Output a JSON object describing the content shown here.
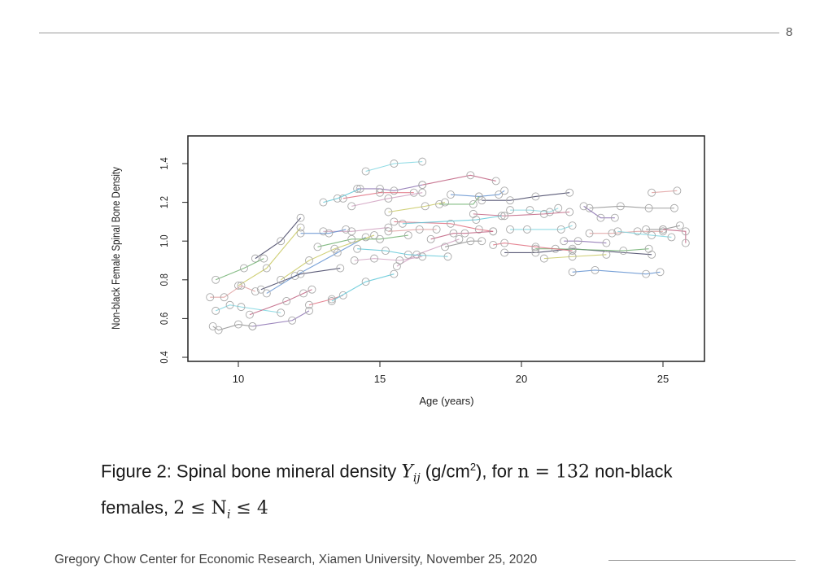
{
  "slide": {
    "page_number": "8",
    "footer": "Gregory Chow Center for Economic Research, Xiamen University, November 25, 2020"
  },
  "caption": {
    "prefix": "Figure 2: Spinal bone mineral density ",
    "Y": "Y",
    "sub": "ij",
    "unit_open": " (g/cm",
    "unit_sup": "2",
    "unit_close": "), for ",
    "n_expr": "n = 132",
    "rest": " non-black",
    "line2_prefix": "females, ",
    "range_expr": "2 ≤ N",
    "range_sub": "i",
    "range_end": " ≤ 4"
  },
  "chart_data": {
    "type": "line",
    "title": "",
    "xlabel": "Age (years)",
    "ylabel": "Non-black Female Spinal Bone Density",
    "xlim": [
      8.2,
      26.4
    ],
    "ylim": [
      0.4,
      1.56
    ],
    "xticks": [
      10,
      15,
      20,
      25
    ],
    "yticks": [
      0.4,
      0.6,
      0.8,
      1.0,
      1.2,
      1.4
    ],
    "xtick_labels": [
      "10",
      "15",
      "20",
      "25"
    ],
    "ytick_labels": [
      "0.4",
      "0.6",
      "0.8",
      "1.0",
      "1.2",
      "1.4"
    ],
    "grid": false,
    "colors": [
      "#7fd6e0",
      "#c06080",
      "#8a70b0",
      "#e07080",
      "#60c8d8",
      "#d0a0c0",
      "#6090d0",
      "#404060",
      "#c8c860",
      "#70b070",
      "#e0a0a0",
      "#909090"
    ],
    "series": [
      {
        "x": [
          14.5,
          15.5,
          16.5
        ],
        "y": [
          1.36,
          1.4,
          1.41
        ]
      },
      {
        "x": [
          16.5,
          18.2,
          19.1
        ],
        "y": [
          1.29,
          1.34,
          1.31
        ]
      },
      {
        "x": [
          14.2,
          15.0,
          15.5,
          16.5
        ],
        "y": [
          1.27,
          1.27,
          1.26,
          1.29
        ]
      },
      {
        "x": [
          13.7,
          15.0,
          16.2
        ],
        "y": [
          1.22,
          1.25,
          1.25
        ]
      },
      {
        "x": [
          13.0,
          13.5,
          14.3
        ],
        "y": [
          1.2,
          1.22,
          1.27
        ]
      },
      {
        "x": [
          14.0,
          15.3,
          16.5
        ],
        "y": [
          1.18,
          1.22,
          1.25
        ]
      },
      {
        "x": [
          17.5,
          18.5,
          19.2,
          19.4
        ],
        "y": [
          1.24,
          1.23,
          1.24,
          1.26
        ]
      },
      {
        "x": [
          18.6,
          19.6,
          20.5,
          21.7
        ],
        "y": [
          1.21,
          1.21,
          1.23,
          1.25
        ]
      },
      {
        "x": [
          15.3,
          16.6,
          17.3
        ],
        "y": [
          1.15,
          1.18,
          1.2
        ]
      },
      {
        "x": [
          17.1,
          18.3,
          18.5
        ],
        "y": [
          1.19,
          1.19,
          1.23
        ]
      },
      {
        "x": [
          24.6,
          25.5
        ],
        "y": [
          1.25,
          1.26
        ]
      },
      {
        "x": [
          22.4,
          23.5,
          24.5,
          25.4
        ],
        "y": [
          1.17,
          1.18,
          1.17,
          1.17
        ]
      },
      {
        "x": [
          19.6,
          20.3,
          21.0,
          21.3
        ],
        "y": [
          1.16,
          1.16,
          1.15,
          1.17
        ]
      },
      {
        "x": [
          18.3,
          19.4,
          20.8,
          21.7
        ],
        "y": [
          1.14,
          1.13,
          1.14,
          1.15
        ]
      },
      {
        "x": [
          22.2,
          22.8,
          23.3
        ],
        "y": [
          1.18,
          1.12,
          1.12
        ]
      },
      {
        "x": [
          15.5,
          17.5,
          18.5,
          19.0
        ],
        "y": [
          1.1,
          1.09,
          1.06,
          1.05
        ]
      },
      {
        "x": [
          15.8,
          18.4,
          19.3
        ],
        "y": [
          1.09,
          1.11,
          1.13
        ]
      },
      {
        "x": [
          13.0,
          14.0,
          15.3
        ],
        "y": [
          1.05,
          1.05,
          1.07
        ]
      },
      {
        "x": [
          12.2,
          13.2,
          13.8
        ],
        "y": [
          1.04,
          1.04,
          1.06
        ]
      },
      {
        "x": [
          10.6,
          11.5,
          12.2
        ],
        "y": [
          0.91,
          1.0,
          1.12
        ]
      },
      {
        "x": [
          10.0,
          11.0,
          12.2
        ],
        "y": [
          0.77,
          0.86,
          1.07
        ]
      },
      {
        "x": [
          9.2,
          10.2,
          10.9
        ],
        "y": [
          0.8,
          0.86,
          0.91
        ]
      },
      {
        "x": [
          9.0,
          9.5,
          10.1,
          10.6
        ],
        "y": [
          0.71,
          0.71,
          0.77,
          0.74
        ]
      },
      {
        "x": [
          9.1,
          9.3,
          10.0,
          10.5
        ],
        "y": [
          0.56,
          0.54,
          0.57,
          0.56
        ]
      },
      {
        "x": [
          9.2,
          9.7,
          10.1,
          11.5
        ],
        "y": [
          0.64,
          0.67,
          0.66,
          0.63
        ]
      },
      {
        "x": [
          10.4,
          11.7,
          12.3,
          12.6
        ],
        "y": [
          0.62,
          0.69,
          0.73,
          0.75
        ]
      },
      {
        "x": [
          10.5,
          11.9,
          12.5
        ],
        "y": [
          0.56,
          0.59,
          0.64
        ]
      },
      {
        "x": [
          12.5,
          13.3,
          13.7
        ],
        "y": [
          0.67,
          0.7,
          0.72
        ]
      },
      {
        "x": [
          13.3,
          14.5,
          15.5
        ],
        "y": [
          0.69,
          0.79,
          0.83
        ]
      },
      {
        "x": [
          15.6,
          16.3,
          17.8
        ],
        "y": [
          0.87,
          0.93,
          1.01
        ]
      },
      {
        "x": [
          21.8,
          22.6,
          24.4,
          24.9
        ],
        "y": [
          0.84,
          0.85,
          0.83,
          0.84
        ]
      },
      {
        "x": [
          19.4,
          20.5,
          21.8,
          24.6
        ],
        "y": [
          0.94,
          0.94,
          0.96,
          0.93
        ]
      },
      {
        "x": [
          20.8,
          21.8,
          23.0
        ],
        "y": [
          0.91,
          0.92,
          0.93
        ]
      },
      {
        "x": [
          20.5,
          21.2,
          23.6,
          24.5
        ],
        "y": [
          0.96,
          0.96,
          0.95,
          0.96
        ]
      },
      {
        "x": [
          22.4,
          23.2,
          24.1,
          25.0
        ],
        "y": [
          1.04,
          1.04,
          1.05,
          1.05
        ]
      },
      {
        "x": [
          24.4,
          25.0,
          25.6
        ],
        "y": [
          1.06,
          1.06,
          1.08
        ]
      },
      {
        "x": [
          23.4,
          24.6,
          25.3
        ],
        "y": [
          1.05,
          1.03,
          1.02
        ]
      },
      {
        "x": [
          25.0,
          25.8,
          25.8
        ],
        "y": [
          1.06,
          1.05,
          0.99
        ]
      },
      {
        "x": [
          21.5,
          22.0,
          23.0
        ],
        "y": [
          1.0,
          1.0,
          0.99
        ]
      },
      {
        "x": [
          19.0,
          19.4,
          20.5,
          21.8
        ],
        "y": [
          0.98,
          0.99,
          0.97,
          0.95
        ]
      },
      {
        "x": [
          14.2,
          15.2,
          16.0,
          17.4
        ],
        "y": [
          0.96,
          0.95,
          0.93,
          0.92
        ]
      },
      {
        "x": [
          14.1,
          14.8,
          15.7,
          16.5
        ],
        "y": [
          0.9,
          0.91,
          0.9,
          0.92
        ]
      },
      {
        "x": [
          11.0,
          12.0,
          13.5,
          14.5
        ],
        "y": [
          0.73,
          0.82,
          0.94,
          1.02
        ]
      },
      {
        "x": [
          10.8,
          12.2,
          13.6
        ],
        "y": [
          0.75,
          0.83,
          0.86
        ]
      },
      {
        "x": [
          11.5,
          12.5,
          13.4,
          14.8
        ],
        "y": [
          0.8,
          0.9,
          0.96,
          1.03
        ]
      },
      {
        "x": [
          12.8,
          14.0,
          15.0,
          16.0
        ],
        "y": [
          0.97,
          1.01,
          1.01,
          1.03
        ]
      },
      {
        "x": [
          15.3,
          16.4,
          17.0
        ],
        "y": [
          1.05,
          1.06,
          1.06
        ]
      },
      {
        "x": [
          17.3,
          18.2,
          18.6
        ],
        "y": [
          0.97,
          1.0,
          1.0
        ]
      },
      {
        "x": [
          19.6,
          20.2,
          21.4,
          21.8
        ],
        "y": [
          1.06,
          1.06,
          1.06,
          1.08
        ]
      },
      {
        "x": [
          16.8,
          17.6,
          18.0,
          19.0
        ],
        "y": [
          1.01,
          1.04,
          1.04,
          1.05
        ]
      }
    ]
  }
}
